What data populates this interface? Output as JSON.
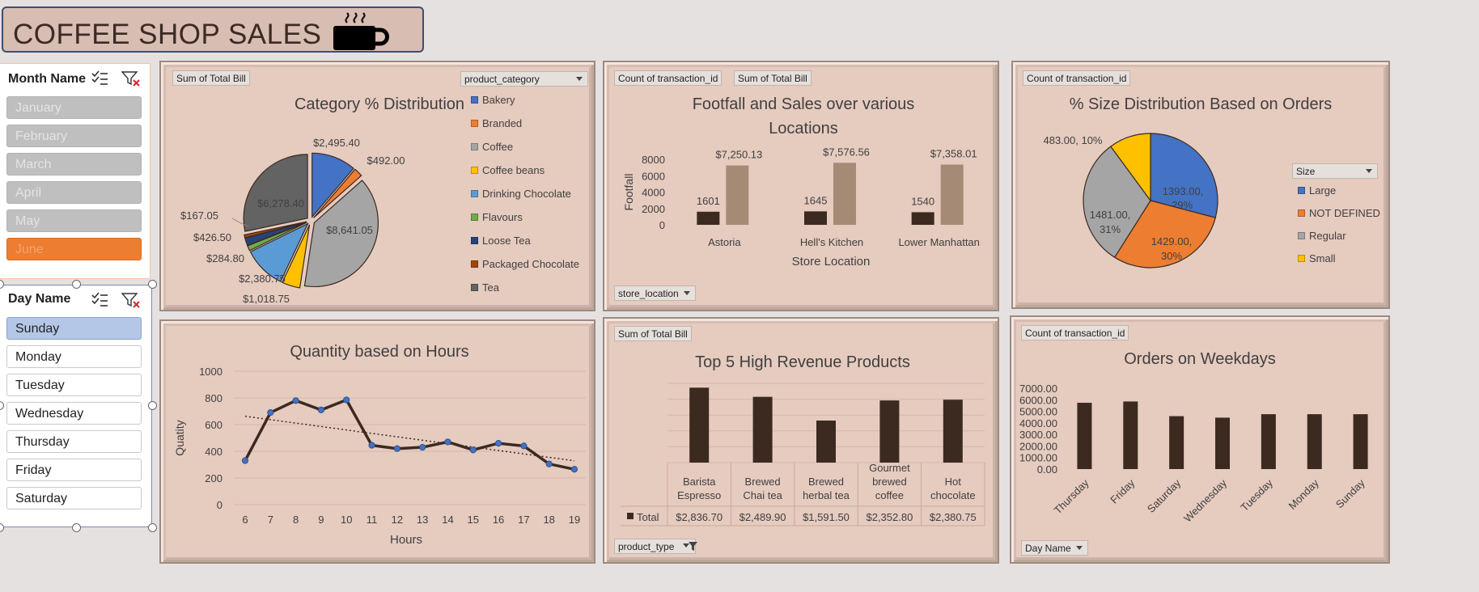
{
  "header": {
    "title": "COFFEE SHOP SALES",
    "icon": "coffee-cup-icon"
  },
  "month_slicer": {
    "title": "Month Name",
    "items": [
      {
        "label": "January",
        "selected": false
      },
      {
        "label": "February",
        "selected": false
      },
      {
        "label": "March",
        "selected": false
      },
      {
        "label": "April",
        "selected": false
      },
      {
        "label": "May",
        "selected": false
      },
      {
        "label": "June",
        "selected": true
      }
    ]
  },
  "day_slicer": {
    "title": "Day Name",
    "items": [
      {
        "label": "Sunday",
        "selected": true
      },
      {
        "label": "Monday",
        "selected": false
      },
      {
        "label": "Tuesday",
        "selected": false
      },
      {
        "label": "Wednesday",
        "selected": false
      },
      {
        "label": "Thursday",
        "selected": false
      },
      {
        "label": "Friday",
        "selected": false
      },
      {
        "label": "Saturday",
        "selected": false
      }
    ]
  },
  "colors": {
    "panel": "#e6cbbf",
    "dark_bar": "#3c2a21",
    "light_bar": "#a58a75",
    "blue": "#4472c4",
    "orange": "#ed7d31",
    "gray": "#a5a5a5",
    "yellow": "#ffc000",
    "lightblue": "#5b9bd5",
    "green": "#70ad47",
    "navy": "#264478",
    "darkgray": "#636363"
  },
  "panels": {
    "category": {
      "value_field": "Sum of Total Bill",
      "legend_field": "product_category",
      "chart_data": {
        "type": "pie",
        "title": "Category % Distribution",
        "slices": [
          {
            "name": "Bakery",
            "value": 2495.4,
            "label": "$2,495.40",
            "color": "#4472c4"
          },
          {
            "name": "Branded",
            "value": 492.0,
            "label": "$492.00",
            "color": "#ed7d31"
          },
          {
            "name": "Coffee",
            "value": 8641.05,
            "label": "$8,641.05",
            "color": "#a5a5a5"
          },
          {
            "name": "Coffee beans",
            "value": 1018.75,
            "label": "$1,018.75",
            "color": "#ffc000"
          },
          {
            "name": "Drinking Chocolate",
            "value": 2380.75,
            "label": "$2,380.75",
            "color": "#5b9bd5"
          },
          {
            "name": "Flavours",
            "value": 284.8,
            "label": "$284.80",
            "color": "#70ad47"
          },
          {
            "name": "Loose Tea",
            "value": 426.5,
            "label": "$426.50",
            "color": "#264478"
          },
          {
            "name": "Packaged Chocolate",
            "value": 167.05,
            "label": "$167.05",
            "color": "#9e480e"
          },
          {
            "name": "Tea",
            "value": 6278.4,
            "label": "$6,278.40",
            "color": "#636363"
          }
        ]
      }
    },
    "footfall": {
      "field_buttons": [
        "Count of transaction_id",
        "Sum of Total Bill"
      ],
      "axis_field": "store_location",
      "chart_data": {
        "type": "bar",
        "title": "Footfall and Sales over various Locations",
        "title_lines": [
          "Footfall and Sales over various",
          "Locations"
        ],
        "categories": [
          "Astoria",
          "Hell's Kitchen",
          "Lower Manhattan"
        ],
        "series": [
          {
            "name": "Count of transaction_id",
            "values": [
              1601,
              1645,
              1540
            ],
            "labels": [
              "1601",
              "1645",
              "1540"
            ]
          },
          {
            "name": "Sum of Total Bill",
            "values": [
              7250.13,
              7576.56,
              7358.01
            ],
            "labels": [
              "$7,250.13",
              "$7,576.56",
              "$7,358.01"
            ]
          }
        ],
        "ylabel": "Footfall",
        "xlabel": "Store Location",
        "ylim": [
          0,
          8000
        ],
        "yticks": [
          "0",
          "2000",
          "4000",
          "6000",
          "8000"
        ]
      }
    },
    "size": {
      "value_field": "Count of transaction_id",
      "legend_field": "Size",
      "chart_data": {
        "type": "pie",
        "title": "% Size Distribution Based on Orders",
        "slices": [
          {
            "name": "Large",
            "value": 1393,
            "label": "1393.00, 29%",
            "color": "#4472c4"
          },
          {
            "name": "NOT DEFINED",
            "value": 1429,
            "label": "1429.00, 30%",
            "color": "#ed7d31"
          },
          {
            "name": "Regular",
            "value": 1481,
            "label": "1481.00, 31%",
            "color": "#a5a5a5"
          },
          {
            "name": "Small",
            "value": 483,
            "label": "483.00, 10%",
            "color": "#ffc000"
          }
        ]
      }
    },
    "hours": {
      "chart_data": {
        "type": "line",
        "title": "Quantity based on Hours",
        "x": [
          "6",
          "7",
          "8",
          "9",
          "10",
          "11",
          "12",
          "13",
          "14",
          "15",
          "16",
          "17",
          "18",
          "19"
        ],
        "values": [
          330,
          690,
          780,
          710,
          785,
          445,
          420,
          430,
          470,
          410,
          460,
          440,
          305,
          265
        ],
        "trendline": "linear",
        "ylabel": "Quatity",
        "xlabel": "Hours",
        "ylim": [
          0,
          1000
        ],
        "yticks": [
          "0",
          "200",
          "400",
          "600",
          "800",
          "1000"
        ]
      }
    },
    "top5": {
      "value_field": "Sum of Total Bill",
      "axis_field": "product_type",
      "chart_data": {
        "type": "bar",
        "title": "Top 5 High Revenue Products",
        "categories": [
          "Barista Espresso",
          "Brewed Chai tea",
          "Brewed herbal tea",
          "Gourmet brewed coffee",
          "Hot chocolate"
        ],
        "category_lines": [
          [
            "Barista",
            "Espresso"
          ],
          [
            "Brewed",
            "Chai tea"
          ],
          [
            "Brewed",
            "herbal tea"
          ],
          [
            "Gourmet",
            "brewed",
            "coffee"
          ],
          [
            "Hot",
            "chocolate"
          ]
        ],
        "series_name": "Total",
        "values": [
          2836.7,
          2489.9,
          1591.5,
          2352.8,
          2380.75
        ],
        "labels": [
          "$2,836.70",
          "$2,489.90",
          "$1,591.50",
          "$2,352.80",
          "$2,380.75"
        ],
        "ylim": [
          0,
          3000
        ]
      }
    },
    "weekdays": {
      "value_field": "Count of transaction_id",
      "axis_field": "Day Name",
      "chart_data": {
        "type": "bar",
        "title": "Orders on Weekdays",
        "categories": [
          "Thursday",
          "Friday",
          "Saturday",
          "Wednesday",
          "Tuesday",
          "Monday",
          "Sunday"
        ],
        "values": [
          5740,
          5850,
          4580,
          4450,
          4750,
          4750,
          4750
        ],
        "ylim": [
          0,
          7000
        ],
        "yticks": [
          "0.00",
          "1000.00",
          "2000.00",
          "3000.00",
          "4000.00",
          "5000.00",
          "6000.00",
          "7000.00"
        ]
      }
    }
  }
}
